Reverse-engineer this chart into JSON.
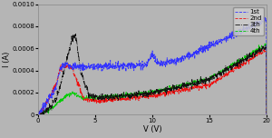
{
  "title": "",
  "xlabel": "V (V)",
  "ylabel": "I (A)",
  "xlim": [
    0,
    20
  ],
  "ylim": [
    0,
    0.001
  ],
  "yticks": [
    0,
    0.0002,
    0.0004,
    0.0006,
    0.0008,
    0.001
  ],
  "ytick_labels": [
    "0",
    "0.0002",
    "0.0004",
    "0.0006",
    "0.0008",
    "0.0010"
  ],
  "xticks": [
    0,
    5,
    10,
    15,
    20
  ],
  "bg_color": "#b5b5b5",
  "legend_labels": [
    "1st",
    "2nd",
    "3th",
    "4th"
  ],
  "line_colors": [
    "#3333ff",
    "#ee1111",
    "#111111",
    "#00cc00"
  ],
  "figsize": [
    3.0,
    1.52
  ],
  "dpi": 100
}
